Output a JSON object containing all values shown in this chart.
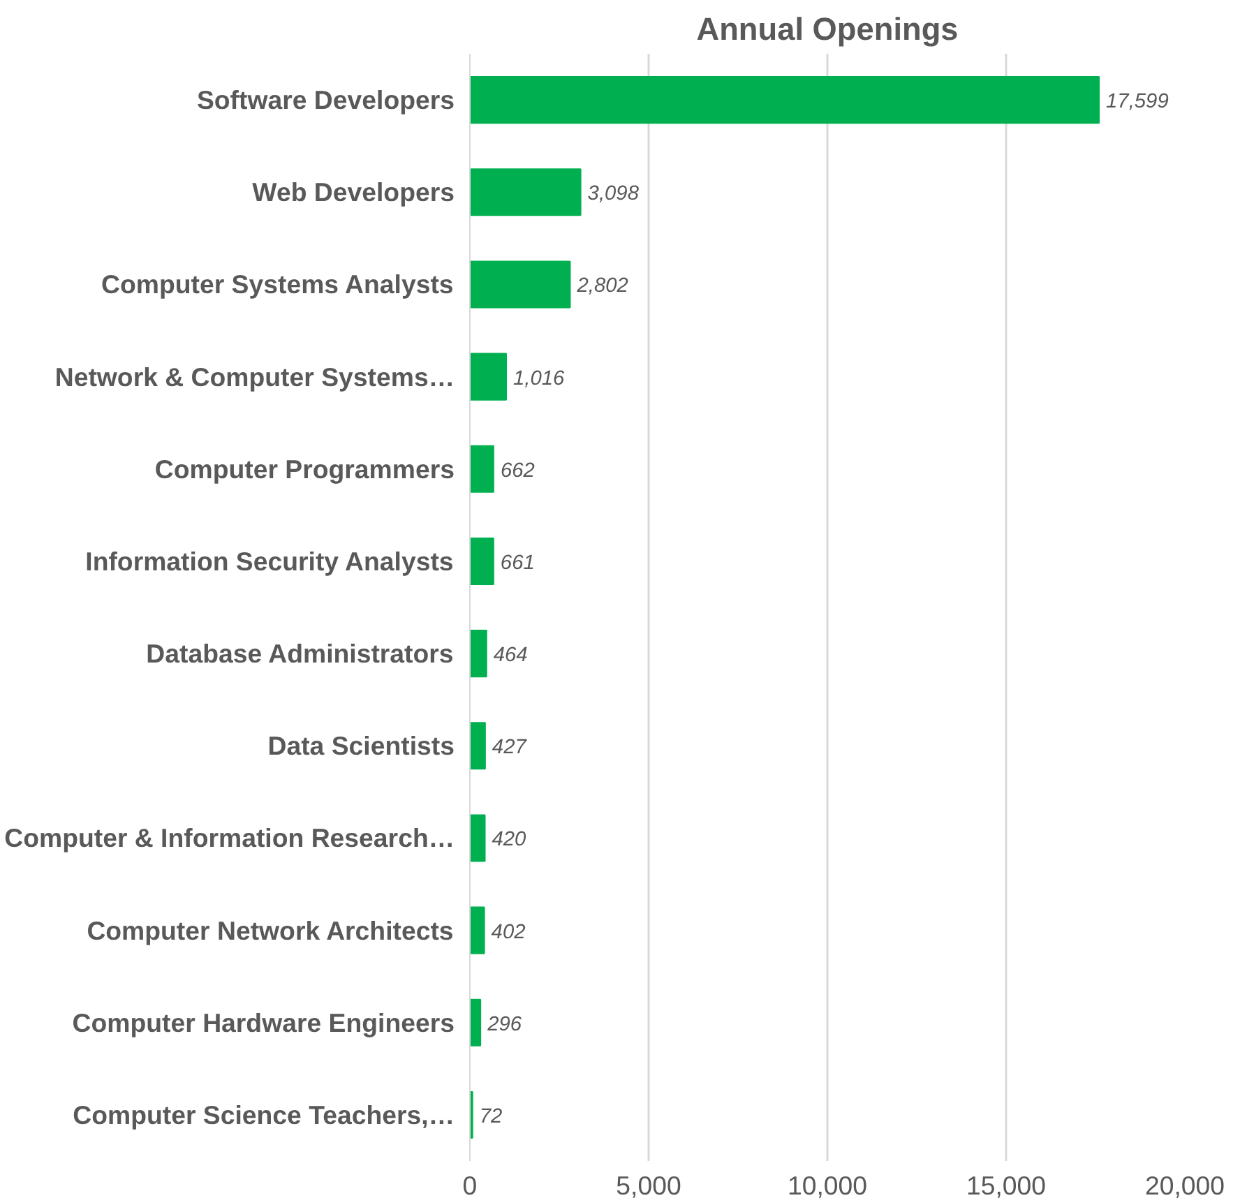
{
  "chart_data": {
    "type": "bar",
    "orientation": "horizontal",
    "title": "Annual Openings",
    "categories": [
      "Software Developers",
      "Web Developers",
      "Computer Systems Analysts",
      "Network & Computer Systems…",
      "Computer Programmers",
      "Information Security Analysts",
      "Database Administrators",
      "Data Scientists",
      "Computer & Information Research…",
      "Computer Network Architects",
      "Computer Hardware Engineers",
      "Computer Science Teachers,…"
    ],
    "values": [
      17599,
      3098,
      2802,
      1016,
      662,
      661,
      464,
      427,
      420,
      402,
      296,
      72
    ],
    "value_labels": [
      "17,599",
      "3,098",
      "2,802",
      "1,016",
      "662",
      "661",
      "464",
      "427",
      "420",
      "402",
      "296",
      "72"
    ],
    "color": "#00b050",
    "xlim": [
      0,
      20000
    ],
    "xticks": [
      {
        "value": 0,
        "label": "0"
      },
      {
        "value": 5000,
        "label": "5,000"
      },
      {
        "value": 10000,
        "label": "10,000"
      },
      {
        "value": 15000,
        "label": "15,000"
      },
      {
        "value": 20000,
        "label": "20,000"
      }
    ],
    "grid": "x"
  }
}
